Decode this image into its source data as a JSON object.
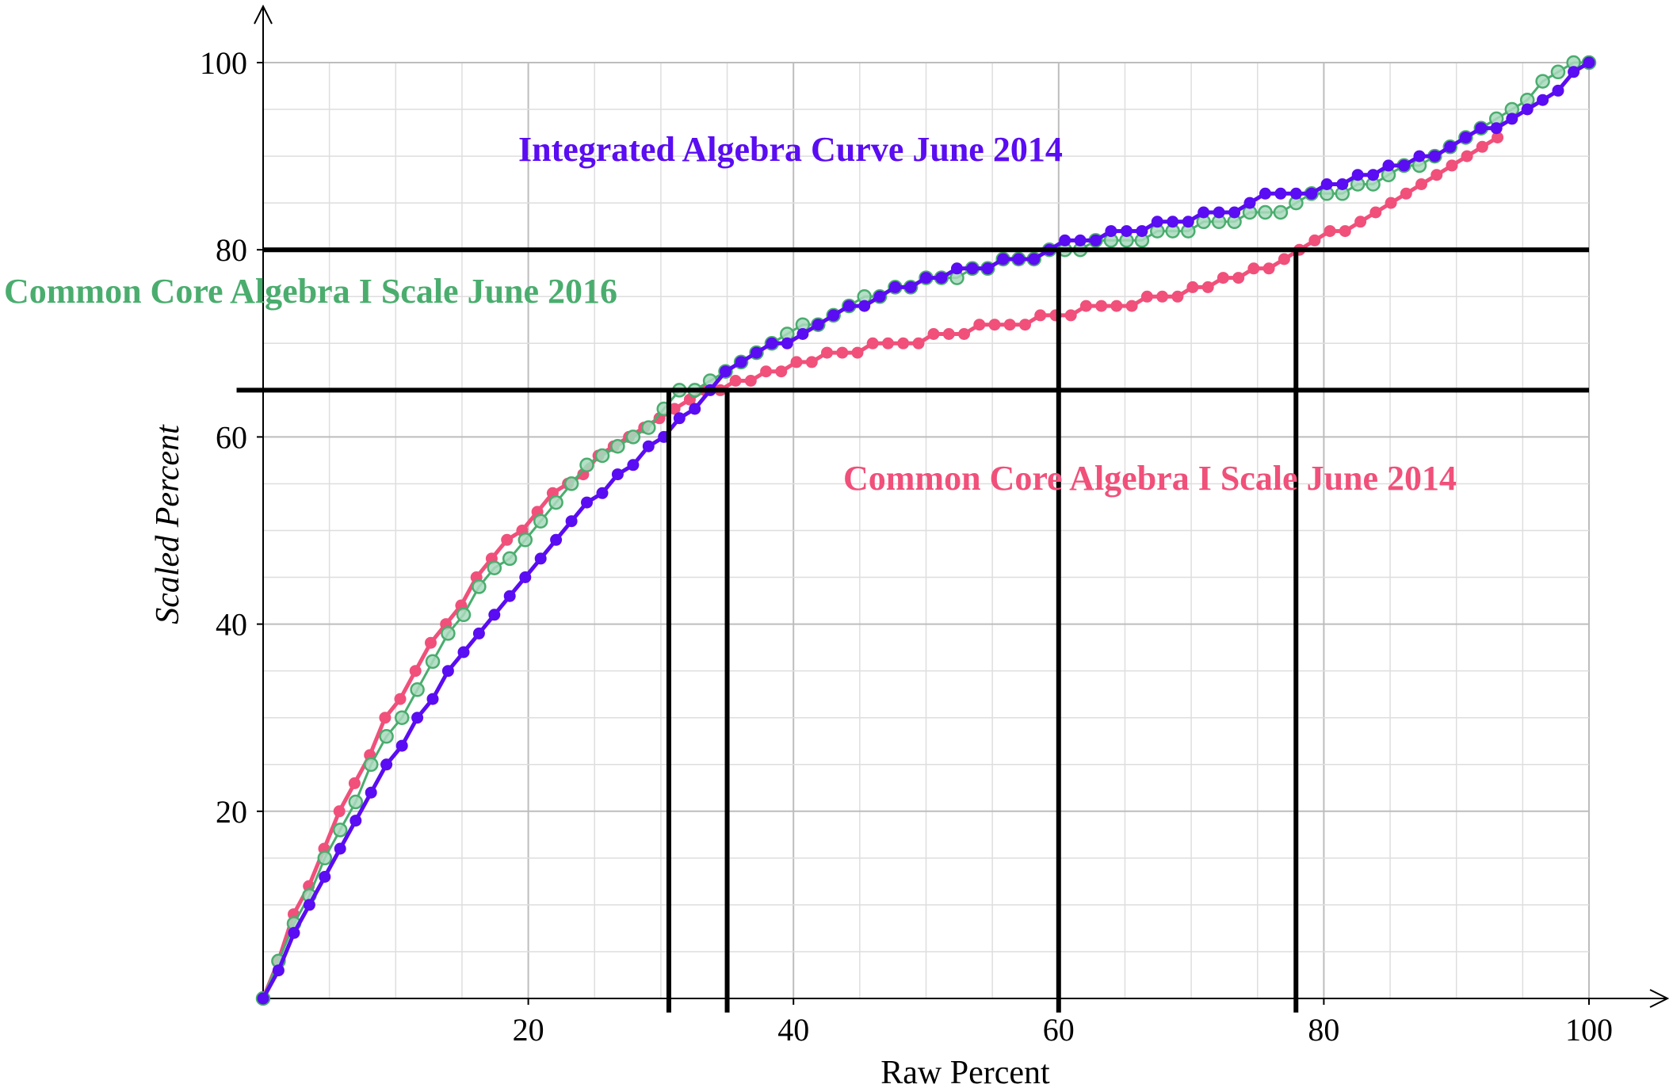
{
  "chart_data": {
    "type": "line",
    "title": "",
    "xlabel": "Raw Percent",
    "ylabel": "Scaled Percent",
    "xlim": [
      0,
      100
    ],
    "ylim": [
      0,
      100
    ],
    "x_ticks": [
      20,
      40,
      60,
      80,
      100
    ],
    "y_ticks": [
      20,
      40,
      60,
      80,
      100
    ],
    "x_tick_labels": [
      "20",
      "40",
      "60",
      "80",
      "100"
    ],
    "y_tick_labels": [
      "20",
      "40",
      "60",
      "80",
      "100"
    ],
    "grid": true,
    "grid_minor_step": 5,
    "series": [
      {
        "name": "Common Core Algebra I Scale June 2014",
        "color": "#f0507a",
        "marker_style": "solid",
        "line_width": 5,
        "points": [
          [
            0,
            0
          ],
          [
            1.15,
            4
          ],
          [
            2.3,
            9
          ],
          [
            3.45,
            12
          ],
          [
            4.6,
            16
          ],
          [
            5.75,
            20
          ],
          [
            6.9,
            23
          ],
          [
            8.05,
            26
          ],
          [
            9.2,
            30
          ],
          [
            10.34,
            32
          ],
          [
            11.49,
            35
          ],
          [
            12.64,
            38
          ],
          [
            13.79,
            40
          ],
          [
            14.94,
            42
          ],
          [
            16.09,
            45
          ],
          [
            17.24,
            47
          ],
          [
            18.39,
            49
          ],
          [
            19.54,
            50
          ],
          [
            20.69,
            52
          ],
          [
            21.84,
            54
          ],
          [
            22.99,
            55
          ],
          [
            24.14,
            56
          ],
          [
            25.29,
            58
          ],
          [
            26.44,
            59
          ],
          [
            27.59,
            60
          ],
          [
            28.74,
            61
          ],
          [
            29.89,
            62
          ],
          [
            31.03,
            63
          ],
          [
            32.18,
            64
          ],
          [
            33.33,
            65
          ],
          [
            34.48,
            65
          ],
          [
            35.63,
            66
          ],
          [
            36.78,
            66
          ],
          [
            37.93,
            67
          ],
          [
            39.08,
            67
          ],
          [
            40.23,
            68
          ],
          [
            41.38,
            68
          ],
          [
            42.53,
            69
          ],
          [
            43.68,
            69
          ],
          [
            44.83,
            69
          ],
          [
            45.98,
            70
          ],
          [
            47.13,
            70
          ],
          [
            48.28,
            70
          ],
          [
            49.43,
            70
          ],
          [
            50.57,
            71
          ],
          [
            51.72,
            71
          ],
          [
            52.87,
            71
          ],
          [
            54.02,
            72
          ],
          [
            55.17,
            72
          ],
          [
            56.32,
            72
          ],
          [
            57.47,
            72
          ],
          [
            58.62,
            73
          ],
          [
            59.77,
            73
          ],
          [
            60.92,
            73
          ],
          [
            62.07,
            74
          ],
          [
            63.22,
            74
          ],
          [
            64.37,
            74
          ],
          [
            65.52,
            74
          ],
          [
            66.67,
            75
          ],
          [
            67.82,
            75
          ],
          [
            68.97,
            75
          ],
          [
            70.11,
            76
          ],
          [
            71.26,
            76
          ],
          [
            72.41,
            77
          ],
          [
            73.56,
            77
          ],
          [
            74.71,
            78
          ],
          [
            75.86,
            78
          ],
          [
            77.01,
            79
          ],
          [
            78.16,
            80
          ],
          [
            79.31,
            81
          ],
          [
            80.46,
            82
          ],
          [
            81.61,
            82
          ],
          [
            82.76,
            83
          ],
          [
            83.91,
            84
          ],
          [
            85.06,
            85
          ],
          [
            86.21,
            86
          ],
          [
            87.36,
            87
          ],
          [
            88.51,
            88
          ],
          [
            89.66,
            89
          ],
          [
            90.8,
            90
          ],
          [
            91.95,
            91
          ],
          [
            93.1,
            92
          ]
        ]
      },
      {
        "name": "Common Core Algebra I Scale June 2016",
        "color": "#4aad6e",
        "marker_style": "hollow",
        "line_width": 3,
        "points": [
          [
            0,
            0
          ],
          [
            1.16,
            4
          ],
          [
            2.33,
            8
          ],
          [
            3.49,
            11
          ],
          [
            4.65,
            15
          ],
          [
            5.81,
            18
          ],
          [
            6.98,
            21
          ],
          [
            8.14,
            25
          ],
          [
            9.3,
            28
          ],
          [
            10.47,
            30
          ],
          [
            11.63,
            33
          ],
          [
            12.79,
            36
          ],
          [
            13.95,
            39
          ],
          [
            15.12,
            41
          ],
          [
            16.28,
            44
          ],
          [
            17.44,
            46
          ],
          [
            18.6,
            47
          ],
          [
            19.77,
            49
          ],
          [
            20.93,
            51
          ],
          [
            22.09,
            53
          ],
          [
            23.26,
            55
          ],
          [
            24.42,
            57
          ],
          [
            25.58,
            58
          ],
          [
            26.74,
            59
          ],
          [
            27.91,
            60
          ],
          [
            29.07,
            61
          ],
          [
            30.23,
            63
          ],
          [
            31.4,
            65
          ],
          [
            32.56,
            65
          ],
          [
            33.72,
            66
          ],
          [
            34.88,
            67
          ],
          [
            36.05,
            68
          ],
          [
            37.21,
            69
          ],
          [
            38.37,
            70
          ],
          [
            39.53,
            71
          ],
          [
            40.7,
            72
          ],
          [
            41.86,
            72
          ],
          [
            43.02,
            73
          ],
          [
            44.19,
            74
          ],
          [
            45.35,
            75
          ],
          [
            46.51,
            75
          ],
          [
            47.67,
            76
          ],
          [
            48.84,
            76
          ],
          [
            50,
            77
          ],
          [
            51.16,
            77
          ],
          [
            52.33,
            77
          ],
          [
            53.49,
            78
          ],
          [
            54.65,
            78
          ],
          [
            55.81,
            79
          ],
          [
            56.98,
            79
          ],
          [
            58.14,
            79
          ],
          [
            59.3,
            80
          ],
          [
            60.47,
            80
          ],
          [
            61.63,
            80
          ],
          [
            62.79,
            81
          ],
          [
            63.95,
            81
          ],
          [
            65.12,
            81
          ],
          [
            66.28,
            81
          ],
          [
            67.44,
            82
          ],
          [
            68.6,
            82
          ],
          [
            69.77,
            82
          ],
          [
            70.93,
            83
          ],
          [
            72.09,
            83
          ],
          [
            73.26,
            83
          ],
          [
            74.42,
            84
          ],
          [
            75.58,
            84
          ],
          [
            76.74,
            84
          ],
          [
            77.91,
            85
          ],
          [
            79.07,
            86
          ],
          [
            80.23,
            86
          ],
          [
            81.4,
            86
          ],
          [
            82.56,
            87
          ],
          [
            83.72,
            87
          ],
          [
            84.88,
            88
          ],
          [
            86.05,
            89
          ],
          [
            87.21,
            89
          ],
          [
            88.37,
            90
          ],
          [
            89.53,
            91
          ],
          [
            90.7,
            92
          ],
          [
            91.86,
            93
          ],
          [
            93.02,
            94
          ],
          [
            94.19,
            95
          ],
          [
            95.35,
            96
          ],
          [
            96.51,
            98
          ],
          [
            97.67,
            99
          ],
          [
            98.84,
            100
          ],
          [
            100,
            100
          ]
        ]
      },
      {
        "name": "Integrated Algebra Curve June 2014",
        "color": "#5a0cf2",
        "marker_style": "solid",
        "line_width": 5,
        "points": [
          [
            0,
            0
          ],
          [
            1.16,
            3
          ],
          [
            2.33,
            7
          ],
          [
            3.49,
            10
          ],
          [
            4.65,
            13
          ],
          [
            5.81,
            16
          ],
          [
            6.98,
            19
          ],
          [
            8.14,
            22
          ],
          [
            9.3,
            25
          ],
          [
            10.47,
            27
          ],
          [
            11.63,
            30
          ],
          [
            12.79,
            32
          ],
          [
            13.95,
            35
          ],
          [
            15.12,
            37
          ],
          [
            16.28,
            39
          ],
          [
            17.44,
            41
          ],
          [
            18.6,
            43
          ],
          [
            19.77,
            45
          ],
          [
            20.93,
            47
          ],
          [
            22.09,
            49
          ],
          [
            23.26,
            51
          ],
          [
            24.42,
            53
          ],
          [
            25.58,
            54
          ],
          [
            26.74,
            56
          ],
          [
            27.91,
            57
          ],
          [
            29.07,
            59
          ],
          [
            30.23,
            60
          ],
          [
            31.4,
            62
          ],
          [
            32.56,
            63
          ],
          [
            33.72,
            65
          ],
          [
            34.88,
            67
          ],
          [
            36.05,
            68
          ],
          [
            37.21,
            69
          ],
          [
            38.37,
            70
          ],
          [
            39.53,
            70
          ],
          [
            40.7,
            71
          ],
          [
            41.86,
            72
          ],
          [
            43.02,
            73
          ],
          [
            44.19,
            74
          ],
          [
            45.35,
            74
          ],
          [
            46.51,
            75
          ],
          [
            47.67,
            76
          ],
          [
            48.84,
            76
          ],
          [
            50,
            77
          ],
          [
            51.16,
            77
          ],
          [
            52.33,
            78
          ],
          [
            53.49,
            78
          ],
          [
            54.65,
            78
          ],
          [
            55.81,
            79
          ],
          [
            56.98,
            79
          ],
          [
            58.14,
            79
          ],
          [
            59.3,
            80
          ],
          [
            60.47,
            81
          ],
          [
            61.63,
            81
          ],
          [
            62.79,
            81
          ],
          [
            63.95,
            82
          ],
          [
            65.12,
            82
          ],
          [
            66.28,
            82
          ],
          [
            67.44,
            83
          ],
          [
            68.6,
            83
          ],
          [
            69.77,
            83
          ],
          [
            70.93,
            84
          ],
          [
            72.09,
            84
          ],
          [
            73.26,
            84
          ],
          [
            74.42,
            85
          ],
          [
            75.58,
            86
          ],
          [
            76.74,
            86
          ],
          [
            77.91,
            86
          ],
          [
            79.07,
            86
          ],
          [
            80.23,
            87
          ],
          [
            81.4,
            87
          ],
          [
            82.56,
            88
          ],
          [
            83.72,
            88
          ],
          [
            84.88,
            89
          ],
          [
            86.05,
            89
          ],
          [
            87.21,
            90
          ],
          [
            88.37,
            90
          ],
          [
            89.53,
            91
          ],
          [
            90.7,
            92
          ],
          [
            91.86,
            93
          ],
          [
            93.02,
            93
          ],
          [
            94.19,
            94
          ],
          [
            95.35,
            95
          ],
          [
            96.51,
            96
          ],
          [
            97.67,
            97
          ],
          [
            98.84,
            99
          ],
          [
            100,
            100
          ]
        ]
      }
    ],
    "reference_lines": {
      "color": "#000000",
      "horizontal": [
        {
          "y": 65,
          "x_from": -2,
          "x_to": 100
        },
        {
          "y": 80,
          "x_from": 0,
          "x_to": 100
        }
      ],
      "vertical": [
        {
          "x": 30.6,
          "y_from": -1.5,
          "y_to": 65
        },
        {
          "x": 35,
          "y_from": -1.5,
          "y_to": 65
        },
        {
          "x": 60,
          "y_from": -1.5,
          "y_to": 80
        },
        {
          "x": 77.9,
          "y_from": -1.5,
          "y_to": 80
        }
      ]
    },
    "annotations": [
      {
        "text": "Integrated Algebra Curve June 2014",
        "color": "#5a0cf2"
      },
      {
        "text": "Common Core Algebra I Scale June 2016",
        "color": "#4aad6e"
      },
      {
        "text": "Common Core Algebra I Scale June 2014",
        "color": "#f0507a"
      }
    ]
  }
}
